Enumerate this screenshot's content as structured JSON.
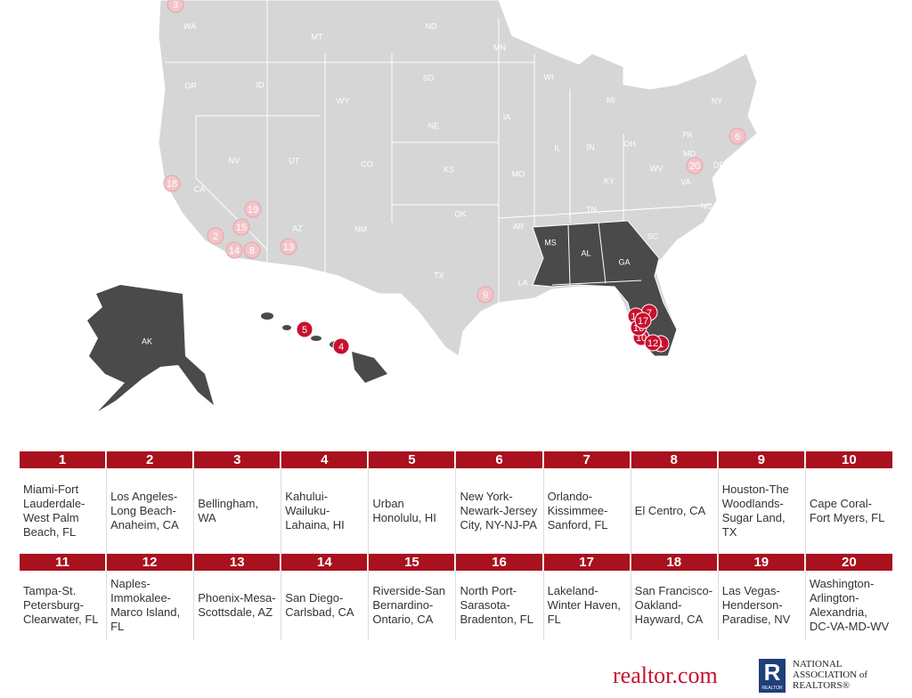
{
  "map": {
    "states": [
      "WA",
      "MT",
      "ND",
      "MN",
      "OR",
      "ID",
      "SD",
      "WI",
      "MI",
      "NY",
      "WY",
      "IA",
      "NE",
      "PA",
      "NV",
      "UT",
      "CO",
      "IL",
      "IN",
      "OH",
      "MD",
      "DE",
      "KS",
      "MO",
      "WV",
      "KY",
      "VA",
      "CA",
      "NC",
      "TN",
      "OK",
      "AR",
      "SC",
      "AZ",
      "NM",
      "MS",
      "AL",
      "GA",
      "TX",
      "LA",
      "AK"
    ],
    "markers": [
      {
        "label": "1",
        "color": "#c8102e"
      },
      {
        "label": "2",
        "color": "#f2c4c8"
      },
      {
        "label": "3",
        "color": "#f2c4c8"
      },
      {
        "label": "4",
        "color": "#c8102e"
      },
      {
        "label": "5",
        "color": "#c8102e"
      },
      {
        "label": "6",
        "color": "#f2c4c8"
      },
      {
        "label": "7",
        "color": "#c8102e"
      },
      {
        "label": "8",
        "color": "#f2c4c8"
      },
      {
        "label": "9",
        "color": "#f2c4c8"
      },
      {
        "label": "10",
        "color": "#c8102e"
      },
      {
        "label": "11",
        "color": "#c8102e"
      },
      {
        "label": "12",
        "color": "#c8102e"
      },
      {
        "label": "13",
        "color": "#f2c4c8"
      },
      {
        "label": "14",
        "color": "#f2c4c8"
      },
      {
        "label": "15",
        "color": "#f2c4c8"
      },
      {
        "label": "16",
        "color": "#c8102e"
      },
      {
        "label": "17",
        "color": "#c8102e"
      },
      {
        "label": "18",
        "color": "#f2c4c8"
      },
      {
        "label": "19",
        "color": "#f2c4c8"
      },
      {
        "label": "20",
        "color": "#f2c4c8"
      }
    ]
  },
  "table": {
    "rows": [
      [
        {
          "rank": "1",
          "name": "Miami-Fort Lauderdale-West Palm Beach, FL"
        },
        {
          "rank": "2",
          "name": "Los Angeles-Long Beach-Anaheim, CA"
        },
        {
          "rank": "3",
          "name": "Bellingham, WA"
        },
        {
          "rank": "4",
          "name": "Kahului-Wailuku-Lahaina, HI"
        },
        {
          "rank": "5",
          "name": "Urban Honolulu, HI"
        },
        {
          "rank": "6",
          "name": "New York-Newark-Jersey City, NY-NJ-PA"
        },
        {
          "rank": "7",
          "name": "Orlando-Kissimmee-Sanford, FL"
        },
        {
          "rank": "8",
          "name": "El Centro, CA"
        },
        {
          "rank": "9",
          "name": "Houston-The Woodlands-Sugar Land, TX"
        },
        {
          "rank": "10",
          "name": "Cape Coral-Fort Myers, FL"
        }
      ],
      [
        {
          "rank": "11",
          "name": "Tampa-St. Petersburg-Clearwater, FL"
        },
        {
          "rank": "12",
          "name": "Naples-Immokalee-Marco Island, FL"
        },
        {
          "rank": "13",
          "name": "Phoenix-Mesa-Scottsdale, AZ"
        },
        {
          "rank": "14",
          "name": "San Diego-Carlsbad, CA"
        },
        {
          "rank": "15",
          "name": "Riverside-San Bernardino-Ontario, CA"
        },
        {
          "rank": "16",
          "name": "North Port-Sarasota-Bradenton, FL"
        },
        {
          "rank": "17",
          "name": "Lakeland-Winter Haven, FL"
        },
        {
          "rank": "18",
          "name": "San Francisco-Oakland-Hayward, CA"
        },
        {
          "rank": "19",
          "name": "Las Vegas-Henderson-Paradise, NV"
        },
        {
          "rank": "20",
          "name": "Washington-Arlington-Alexandria, DC-VA-MD-WV"
        }
      ]
    ]
  },
  "footer": {
    "realtor": "realtor.com",
    "nar_line1": "NATIONAL",
    "nar_line2": "ASSOCIATION of",
    "nar_line3": "REALTORS®",
    "nar_badge": "REALTOR"
  }
}
